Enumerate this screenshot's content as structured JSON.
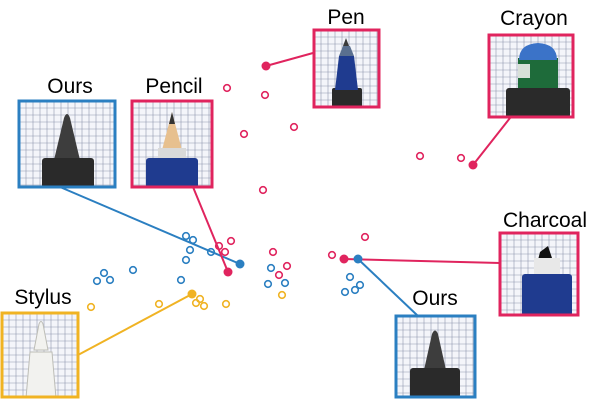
{
  "colors": {
    "red": "#e0245e",
    "blue": "#2b7fc1",
    "yellow": "#f0b323",
    "paper": "#f4f5fa",
    "grid": "#8f98ad",
    "cap_blue": "#1f3b8f",
    "holder": "#2a2a2a"
  },
  "callouts": [
    {
      "label": "Pen",
      "group": "red",
      "icon": "pen-tip-icon"
    },
    {
      "label": "Crayon",
      "group": "red",
      "icon": "crayon-tip-icon"
    },
    {
      "label": "Ours",
      "group": "blue",
      "icon": "felt-tip-icon"
    },
    {
      "label": "Pencil",
      "group": "red",
      "icon": "pencil-tip-icon"
    },
    {
      "label": "Charcoal",
      "group": "red",
      "icon": "charcoal-tip-icon"
    },
    {
      "label": "Ours",
      "group": "blue",
      "icon": "felt-tip-icon"
    },
    {
      "label": "Stylus",
      "group": "yellow",
      "icon": "stylus-tip-icon"
    }
  ]
}
